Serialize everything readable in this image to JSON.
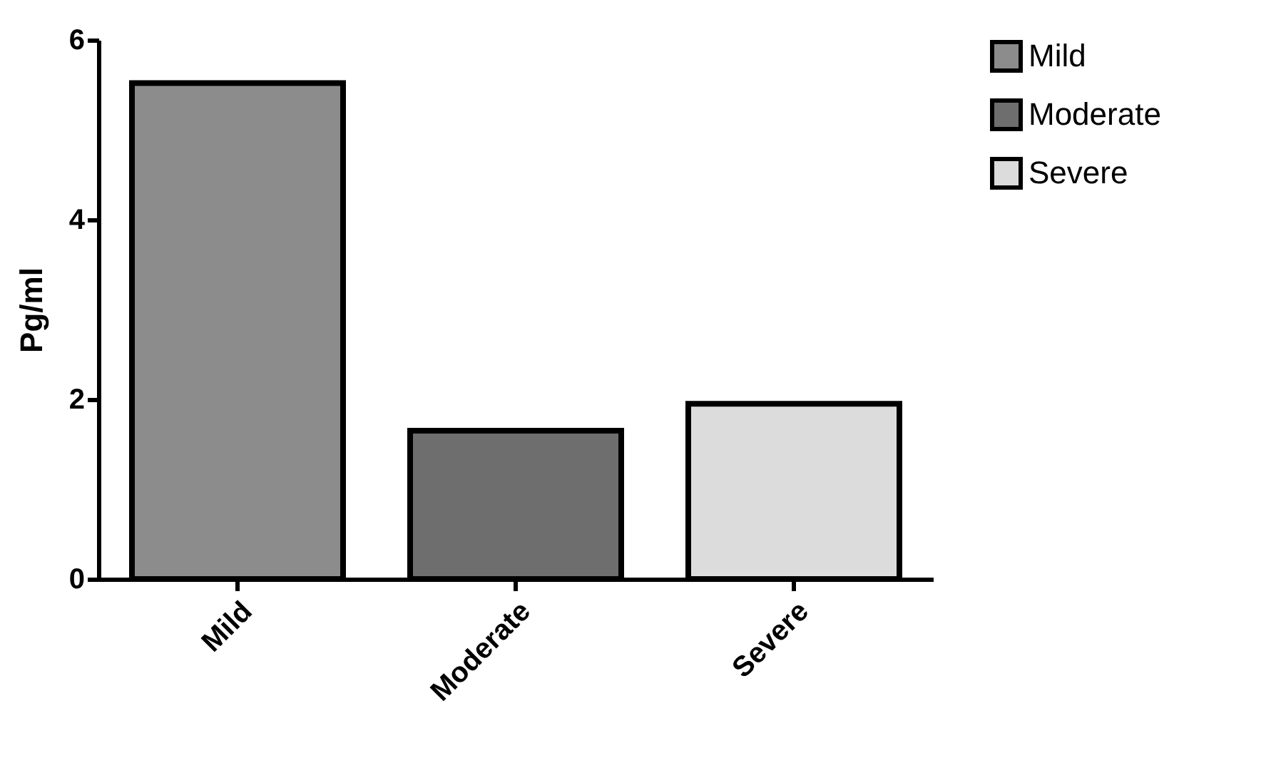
{
  "chart_data": {
    "type": "bar",
    "ylabel": "Pg/ml",
    "categories": [
      "Mild",
      "Moderate",
      "Severe"
    ],
    "series": [
      {
        "name": "Mild",
        "color": "#8c8c8c",
        "values": [
          5.52,
          null,
          null
        ]
      },
      {
        "name": "Moderate",
        "color": "#6e6e6e",
        "values": [
          null,
          1.65,
          null
        ]
      },
      {
        "name": "Severe",
        "color": "#dcdcdc",
        "values": [
          null,
          null,
          1.95
        ]
      }
    ],
    "ylim": [
      0,
      6
    ],
    "yticks": [
      0,
      2,
      4,
      6
    ],
    "grid": false,
    "legend": "top right"
  }
}
